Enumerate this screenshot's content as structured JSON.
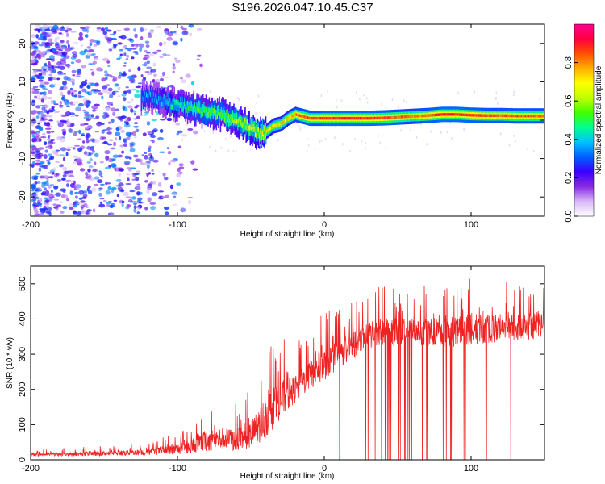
{
  "figure_title": "S196.2026.047.10.45.C37",
  "chart_data": [
    {
      "type": "heatmap",
      "name": "spectrogram",
      "xlabel": "Height of straight line (km)",
      "ylabel": "Frequency (Hz)",
      "xlim": [
        -200,
        150
      ],
      "ylim": [
        -25,
        25
      ],
      "xticks": [
        -200,
        -100,
        0,
        100
      ],
      "yticks": [
        -20,
        -10,
        0,
        10,
        20
      ],
      "colorbar": {
        "label": "Normalized spectral amplitude",
        "range": [
          0,
          1
        ],
        "ticks": [
          0.0,
          0.2,
          0.4,
          0.6,
          0.8
        ],
        "colors": [
          "#ffffff",
          "#d8b8f8",
          "#8a2be2",
          "#3a00ff",
          "#0060ff",
          "#00c0ff",
          "#00ff90",
          "#40ff00",
          "#c0ff00",
          "#ffff00",
          "#ffb000",
          "#ff5000",
          "#ff0040",
          "#ff0090"
        ]
      },
      "ridge_profile": {
        "x": [
          -120,
          -110,
          -100,
          -90,
          -80,
          -70,
          -60,
          -50,
          -45,
          -40,
          -35,
          -30,
          -25,
          -20,
          -15,
          -10,
          -5,
          0,
          10,
          20,
          30,
          40,
          50,
          60,
          70,
          80,
          90,
          100,
          110,
          120,
          130,
          140,
          150
        ],
        "frequency_hz": [
          6,
          5,
          4,
          3,
          2,
          1.5,
          0,
          -2,
          -3.5,
          -3,
          -1.5,
          -1,
          0.5,
          1.5,
          1,
          0.5,
          0.5,
          0.5,
          0.5,
          0.5,
          0.5,
          0.6,
          0.8,
          1,
          1.2,
          1.5,
          1.5,
          1.3,
          1.2,
          1.2,
          1.1,
          1.1,
          1.1
        ],
        "peak_amplitude": [
          0.35,
          0.4,
          0.45,
          0.5,
          0.55,
          0.55,
          0.6,
          0.65,
          0.65,
          0.7,
          0.72,
          0.75,
          0.75,
          0.8,
          0.85,
          0.85,
          0.85,
          0.9,
          0.9,
          0.9,
          0.9,
          0.88,
          0.85,
          0.8,
          0.85,
          0.9,
          0.9,
          0.88,
          0.85,
          0.85,
          0.85,
          0.85,
          0.85
        ]
      },
      "noise_region": {
        "x_range": [
          -200,
          -100
        ],
        "amplitude_range": [
          0.05,
          0.4
        ]
      }
    },
    {
      "type": "line",
      "name": "snr",
      "xlabel": "Height of straight line (km)",
      "ylabel": "SNR (10 * v/v)",
      "xlim": [
        -200,
        150
      ],
      "ylim": [
        0,
        550
      ],
      "xticks": [
        -200,
        -100,
        0,
        100
      ],
      "yticks": [
        0,
        100,
        200,
        300,
        400,
        500
      ],
      "color": "#ee2222",
      "envelope": {
        "x": [
          -200,
          -150,
          -120,
          -100,
          -90,
          -80,
          -70,
          -60,
          -50,
          -40,
          -30,
          -20,
          -10,
          0,
          10,
          20,
          30,
          40,
          60,
          80,
          100,
          120,
          150
        ],
        "base": [
          15,
          18,
          22,
          30,
          40,
          55,
          60,
          55,
          70,
          120,
          170,
          200,
          240,
          270,
          300,
          330,
          355,
          360,
          365,
          360,
          370,
          375,
          380
        ],
        "peak": [
          30,
          40,
          50,
          80,
          110,
          160,
          170,
          160,
          200,
          320,
          350,
          330,
          380,
          420,
          440,
          470,
          480,
          500,
          490,
          500,
          520,
          510,
          500
        ]
      }
    }
  ]
}
